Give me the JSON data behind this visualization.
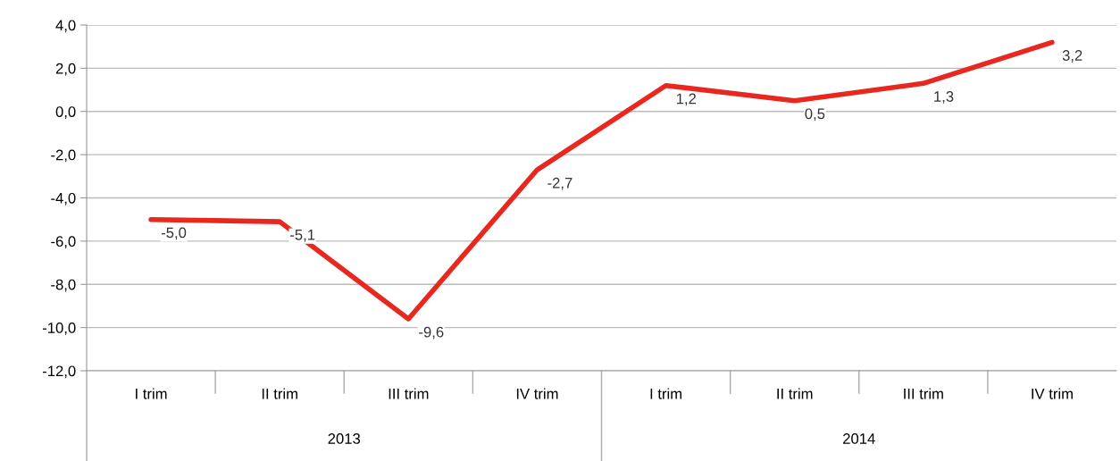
{
  "chart_data": {
    "type": "line",
    "categories": [
      "I trim",
      "II trim",
      "III trim",
      "IV trim",
      "I trim",
      "II trim",
      "III trim",
      "IV trim"
    ],
    "series": [
      {
        "color": "#e8281e",
        "values": [
          -5.0,
          -5.1,
          -9.6,
          -2.7,
          1.2,
          0.5,
          1.3,
          3.2
        ],
        "value_labels": [
          "-5,0",
          "-5,1",
          "-9,6",
          "-2,7",
          "1,2",
          "0,5",
          "1,3",
          "3,2"
        ]
      }
    ],
    "ylim": [
      -12,
      4
    ],
    "yticks": [
      {
        "value": -12,
        "label": "-12,0"
      },
      {
        "value": -10,
        "label": "-10,0"
      },
      {
        "value": -8,
        "label": "-8,0"
      },
      {
        "value": -6,
        "label": "-6,0"
      },
      {
        "value": -4,
        "label": "-4,0"
      },
      {
        "value": -2,
        "label": "-2,0"
      },
      {
        "value": 0,
        "label": "0,0"
      },
      {
        "value": 2,
        "label": "2,0"
      },
      {
        "value": 4,
        "label": "4,0"
      }
    ],
    "annotations": [
      "2013",
      "2014"
    ],
    "grid": "y",
    "marker": "none",
    "line_style": "solid",
    "legend": false
  }
}
